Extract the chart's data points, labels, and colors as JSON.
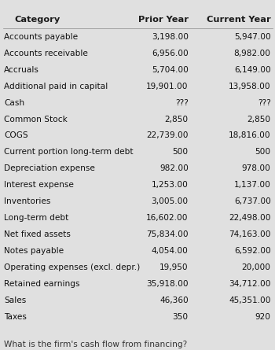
{
  "title_col": "Category",
  "title_prior": "Prior Year",
  "title_current": "Current Year",
  "rows": [
    [
      "Accounts payable",
      "3,198.00",
      "5,947.00"
    ],
    [
      "Accounts receivable",
      "6,956.00",
      "8,982.00"
    ],
    [
      "Accruals",
      "5,704.00",
      "6,149.00"
    ],
    [
      "Additional paid in capital",
      "19,901.00",
      "13,958.00"
    ],
    [
      "Cash",
      "???",
      "???"
    ],
    [
      "Common Stock",
      "2,850",
      "2,850"
    ],
    [
      "COGS",
      "22,739.00",
      "18,816.00"
    ],
    [
      "Current portion long-term debt",
      "500",
      "500"
    ],
    [
      "Depreciation expense",
      "982.00",
      "978.00"
    ],
    [
      "Interest expense",
      "1,253.00",
      "1,137.00"
    ],
    [
      "Inventories",
      "3,005.00",
      "6,737.00"
    ],
    [
      "Long-term debt",
      "16,602.00",
      "22,498.00"
    ],
    [
      "Net fixed assets",
      "75,834.00",
      "74,163.00"
    ],
    [
      "Notes payable",
      "4,054.00",
      "6,592.00"
    ],
    [
      "Operating expenses (excl. depr.)",
      "19,950",
      "20,000"
    ],
    [
      "Retained earnings",
      "35,918.00",
      "34,712.00"
    ],
    [
      "Sales",
      "46,360",
      "45,351.00"
    ],
    [
      "Taxes",
      "350",
      "920"
    ]
  ],
  "question": "What is the firm's cash flow from financing?",
  "bg_color": "#e0e0e0",
  "header_color": "#1a1a1a",
  "row_text_color": "#111111",
  "question_color": "#333333",
  "font_size_header": 8.2,
  "font_size_row": 7.6,
  "font_size_question": 7.6
}
